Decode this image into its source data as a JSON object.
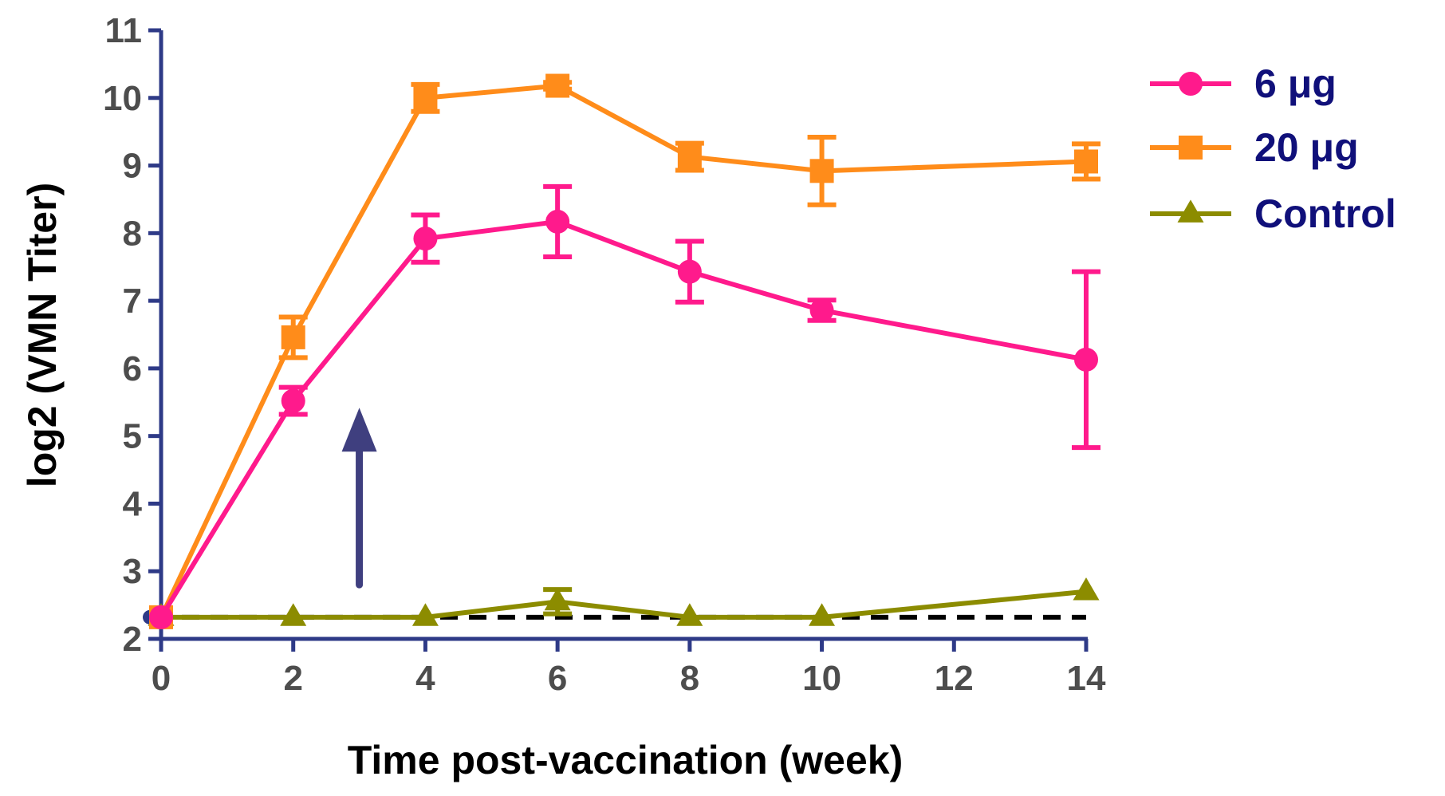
{
  "chart_data": {
    "type": "line",
    "xlabel": "Time post-vaccination (week)",
    "ylabel": "log2 (VMN Titer)",
    "xlim": [
      0,
      14
    ],
    "ylim": [
      2,
      11
    ],
    "x_ticks": [
      0,
      2,
      4,
      6,
      8,
      10,
      12,
      14
    ],
    "y_ticks": [
      2,
      3,
      4,
      5,
      6,
      7,
      8,
      9,
      10,
      11
    ],
    "grid": false,
    "legend_position": "top-right",
    "baseline": {
      "y": 2.32,
      "style": "dashed",
      "color": "#000000"
    },
    "annotation": {
      "type": "arrow",
      "x": 3,
      "y_from": 2.8,
      "y_to": 5.3,
      "color": "#3f3f7f"
    },
    "axis_color": "#2e3a87",
    "series": [
      {
        "name": "6 μg",
        "color": "#ff1a8c",
        "marker": "circle",
        "x": [
          0,
          2,
          4,
          6,
          8,
          10,
          14
        ],
        "y": [
          2.32,
          5.52,
          7.92,
          8.17,
          7.43,
          6.86,
          6.13
        ],
        "err": [
          0,
          0.2,
          0.35,
          0.52,
          0.45,
          0.15,
          1.3
        ]
      },
      {
        "name": "20 μg",
        "color": "#ff8c1a",
        "marker": "square",
        "x": [
          0,
          2,
          4,
          6,
          8,
          10,
          14
        ],
        "y": [
          2.32,
          6.46,
          10.0,
          10.18,
          9.13,
          8.92,
          9.06
        ],
        "err": [
          0,
          0.3,
          0.2,
          0.05,
          0.2,
          0.5,
          0.26
        ]
      },
      {
        "name": "Control",
        "color": "#8c8c00",
        "marker": "triangle",
        "x": [
          0,
          2,
          4,
          6,
          8,
          10,
          14
        ],
        "y": [
          2.32,
          2.32,
          2.32,
          2.55,
          2.32,
          2.32,
          2.7
        ],
        "err": [
          0,
          0,
          0,
          0.18,
          0,
          0,
          0
        ]
      }
    ]
  }
}
